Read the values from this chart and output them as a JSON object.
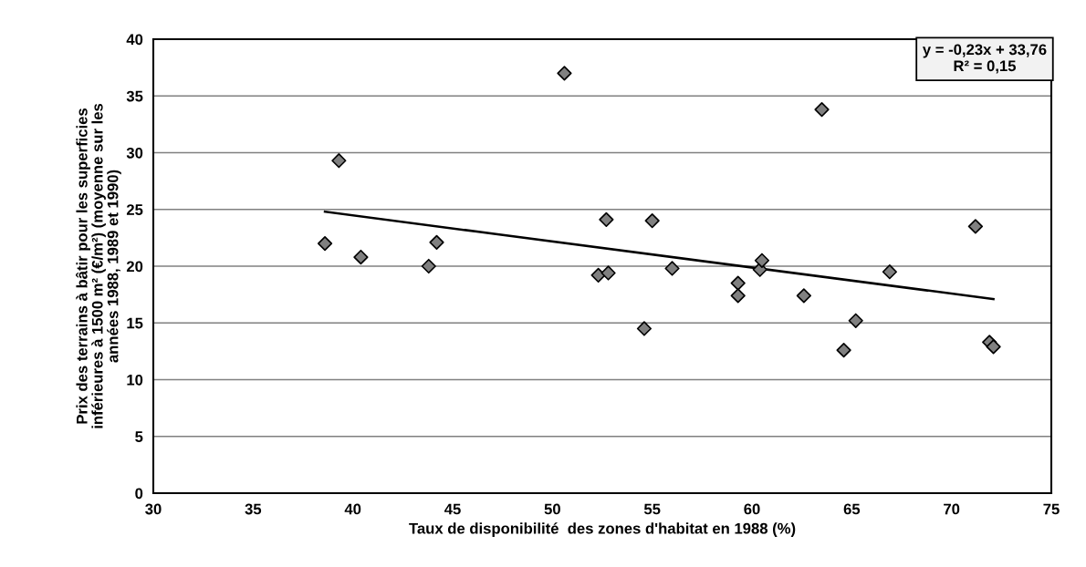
{
  "chart_data": {
    "type": "scatter",
    "xlabel": "Taux de disponibilité  des zones d'habitat en 1988 (%)",
    "ylabel": "Prix des terrains à bâtir pour les superficies\ninférieures à 1500 m² (€/m²) (moyenne sur les\nannées 1988, 1989 et 1990)",
    "annotations": [
      "y = -0,23x + 33,76\nR² = 0,15"
    ],
    "xlim": [
      30,
      75
    ],
    "xticks": [
      30,
      35,
      40,
      45,
      50,
      55,
      60,
      65,
      70,
      75
    ],
    "ylim": [
      0,
      40
    ],
    "yticks": [
      0,
      5,
      10,
      15,
      20,
      25,
      30,
      35,
      40
    ],
    "grid": "y",
    "series": [
      {
        "marker": "diamond",
        "color": "#808080",
        "x": [
          38.6,
          39.3,
          40.4,
          43.8,
          44.2,
          50.6,
          52.3,
          52.7,
          52.8,
          54.6,
          55.0,
          56.0,
          59.3,
          59.3,
          60.4,
          60.5,
          62.6,
          63.5,
          64.6,
          65.2,
          66.9,
          71.2,
          71.9,
          72.1
        ],
        "values": [
          22.0,
          29.3,
          20.8,
          20.0,
          22.1,
          37.0,
          19.2,
          24.1,
          19.4,
          14.5,
          24.0,
          19.8,
          18.5,
          17.4,
          19.7,
          20.5,
          17.4,
          33.8,
          12.6,
          15.2,
          19.5,
          23.5,
          13.3,
          12.9
        ]
      },
      {
        "type": "line",
        "marker": "none",
        "color": "#000000",
        "x": [
          38.6,
          72.1
        ],
        "values": [
          24.8,
          17.1
        ]
      }
    ]
  }
}
